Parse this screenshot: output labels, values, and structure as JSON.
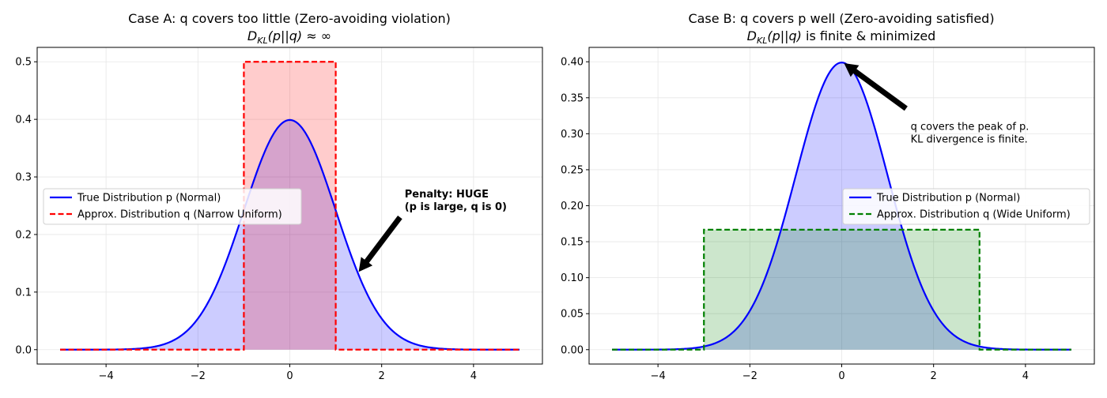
{
  "chart_data": [
    {
      "type": "line",
      "title": "Case A: q covers too little (Zero-avoiding violation)",
      "subtitle": "D_KL(p||q) ≈ ∞",
      "xlim": [
        -5.5,
        5.5
      ],
      "ylim": [
        -0.025,
        0.525
      ],
      "xticks": [
        -4,
        -2,
        0,
        2,
        4
      ],
      "yticks": [
        0.0,
        0.1,
        0.2,
        0.3,
        0.4,
        0.5
      ],
      "ytick_labels": [
        "0.0",
        "0.1",
        "0.2",
        "0.3",
        "0.4",
        "0.5"
      ],
      "xtick_labels": [
        "−4",
        "−2",
        "0",
        "2",
        "4"
      ],
      "grid": true,
      "legend_position": "center-left",
      "series": [
        {
          "name": "True Distribution p (Normal)",
          "kind": "normal",
          "mean": 0,
          "std": 1,
          "x_range": [
            -5,
            5
          ],
          "color": "#0000ff",
          "fill": "#ccccff",
          "style": "solid"
        },
        {
          "name": "Approx. Distribution q (Narrow Uniform)",
          "kind": "uniform",
          "low": -1,
          "high": 1,
          "height": 0.5,
          "x_range": [
            -5,
            5
          ],
          "color": "#ff0000",
          "fill": "#ff9999",
          "style": "dashed"
        }
      ],
      "annotation": {
        "lines": [
          "Penalty: HUGE",
          "(p is large, q is 0)"
        ],
        "bold": true,
        "text_at": [
          2.5,
          0.27
        ],
        "arrow_from": [
          2.4,
          0.23
        ],
        "arrow_to": [
          1.5,
          0.135
        ]
      }
    },
    {
      "type": "line",
      "title": "Case B: q covers p well (Zero-avoiding satisfied)",
      "subtitle": "D_KL(p||q) is finite & minimized",
      "xlim": [
        -5.5,
        5.5
      ],
      "ylim": [
        -0.02,
        0.42
      ],
      "xticks": [
        -4,
        -2,
        0,
        2,
        4
      ],
      "yticks": [
        0.0,
        0.05,
        0.1,
        0.15,
        0.2,
        0.25,
        0.3,
        0.35,
        0.4
      ],
      "ytick_labels": [
        "0.00",
        "0.05",
        "0.10",
        "0.15",
        "0.20",
        "0.25",
        "0.30",
        "0.35",
        "0.40"
      ],
      "xtick_labels": [
        "−4",
        "−2",
        "0",
        "2",
        "4"
      ],
      "grid": true,
      "legend_position": "center-right",
      "series": [
        {
          "name": "True Distribution p (Normal)",
          "kind": "normal",
          "mean": 0,
          "std": 1,
          "x_range": [
            -5,
            5
          ],
          "color": "#0000ff",
          "fill": "#ccccff",
          "style": "solid"
        },
        {
          "name": "Approx. Distribution q (Wide Uniform)",
          "kind": "uniform",
          "low": -3,
          "high": 3,
          "height": 0.1667,
          "x_range": [
            -5,
            5
          ],
          "color": "#008000",
          "fill": "#b3d9b3",
          "style": "dashed"
        }
      ],
      "annotation": {
        "lines": [
          "q covers the peak of p.",
          "KL divergence is finite."
        ],
        "bold": false,
        "text_at": [
          1.5,
          0.31
        ],
        "arrow_from": [
          1.4,
          0.335
        ],
        "arrow_to": [
          0.05,
          0.398
        ]
      }
    }
  ]
}
